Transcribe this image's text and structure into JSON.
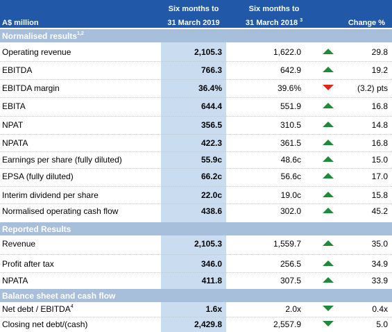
{
  "header": {
    "label": "A$ million",
    "current": [
      "Six months to",
      "31 March 2019"
    ],
    "prior": [
      "Six months to",
      "31 March 2018"
    ],
    "prior_note": "3",
    "change": "Change %"
  },
  "sections": [
    {
      "title": "Normalised results",
      "note": "1,2",
      "rows": [
        {
          "label": "Operating revenue",
          "current": "2,105.3",
          "prior": "1,622.0",
          "trend": "up",
          "trend_color": "#1e8a3a",
          "change": "29.8"
        },
        {
          "label": "EBITDA",
          "current": "766.3",
          "prior": "642.9",
          "trend": "up",
          "trend_color": "#1e8a3a",
          "change": "19.2"
        },
        {
          "label": "EBITDA margin",
          "current": "36.4%",
          "prior": "39.6%",
          "trend": "down",
          "trend_color": "#e2231a",
          "change": "(3.2) pts"
        },
        {
          "label": "EBITA",
          "current": "644.4",
          "prior": "551.9",
          "trend": "up",
          "trend_color": "#1e8a3a",
          "change": "16.8"
        },
        {
          "label": "NPAT",
          "current": "356.5",
          "prior": "310.5",
          "trend": "up",
          "trend_color": "#1e8a3a",
          "change": "14.8"
        },
        {
          "label": "NPATA",
          "current": "422.3",
          "prior": "361.5",
          "trend": "up",
          "trend_color": "#1e8a3a",
          "change": "16.8"
        },
        {
          "label": "Earnings per share (fully diluted)",
          "current": "55.9c",
          "prior": "48.6c",
          "trend": "up",
          "trend_color": "#1e8a3a",
          "change": "15.0"
        },
        {
          "label": "EPSA (fully diluted)",
          "current": "66.2c",
          "prior": "56.6c",
          "trend": "up",
          "trend_color": "#1e8a3a",
          "change": "17.0"
        },
        {
          "label": "Interim dividend per share",
          "current": "22.0c",
          "prior": "19.0c",
          "trend": "up",
          "trend_color": "#1e8a3a",
          "change": "15.8"
        },
        {
          "label": "Normalised operating cash flow",
          "current": "438.6",
          "prior": "302.0",
          "trend": "up",
          "trend_color": "#1e8a3a",
          "change": "45.2"
        }
      ]
    },
    {
      "title": "Reported Results",
      "rows": [
        {
          "label": "Revenue",
          "current": "2,105.3",
          "prior": "1,559.7",
          "trend": "up",
          "trend_color": "#1e8a3a",
          "change": "35.0"
        },
        {
          "label": "Profit after tax",
          "current": "346.0",
          "prior": "256.5",
          "trend": "up",
          "trend_color": "#1e8a3a",
          "change": "34.9"
        },
        {
          "label": "NPATA",
          "current": "411.8",
          "prior": "307.5",
          "trend": "up",
          "trend_color": "#1e8a3a",
          "change": "33.9"
        }
      ]
    },
    {
      "title": "Balance sheet and cash flow",
      "rows": [
        {
          "label": "Net debt / EBITDA",
          "note": "4",
          "current": "1.6x",
          "prior": "2.0x",
          "trend": "down",
          "trend_color": "#1e8a3a",
          "change": "0.4x"
        },
        {
          "label": "Closing net debt/(cash)",
          "current": "2,429.8",
          "prior": "2,557.9",
          "trend": "down",
          "trend_color": "#1e8a3a",
          "change": "5.0"
        }
      ]
    }
  ]
}
